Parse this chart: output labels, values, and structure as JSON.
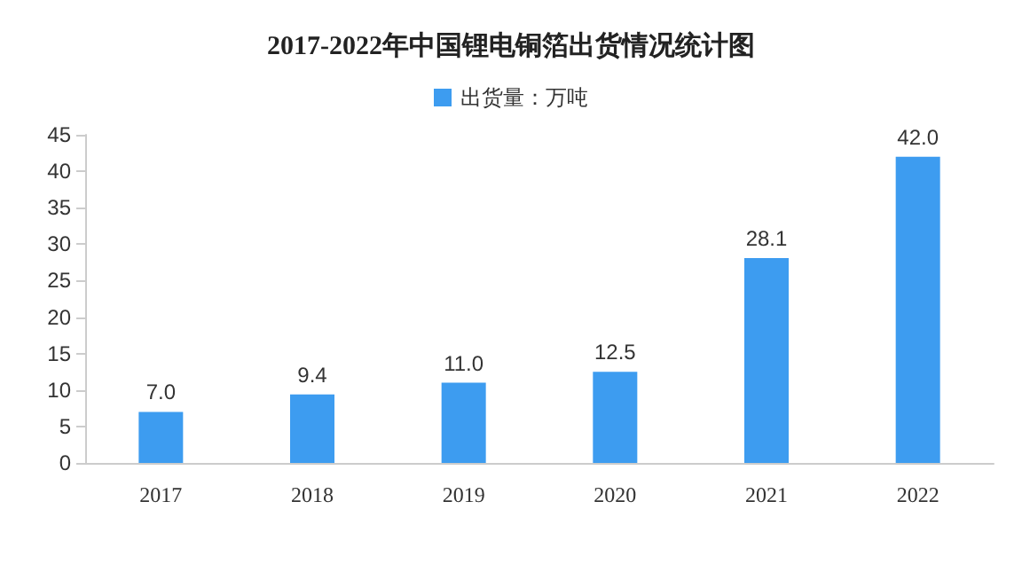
{
  "chart_data": {
    "type": "bar",
    "title": "2017-2022年中国锂电铜箔出货情况统计图",
    "categories": [
      "2017",
      "2018",
      "2019",
      "2020",
      "2021",
      "2022"
    ],
    "series": [
      {
        "name": "出货量：万吨",
        "color": "#3d9cf0",
        "values": [
          7.0,
          9.4,
          11.0,
          12.5,
          28.1,
          42.0
        ]
      }
    ],
    "value_labels": [
      "7.0",
      "9.4",
      "11.0",
      "12.5",
      "28.1",
      "42.0"
    ],
    "ylim": [
      0,
      45
    ],
    "yticks": [
      0,
      5,
      10,
      15,
      20,
      25,
      30,
      35,
      40,
      45
    ],
    "grid": false,
    "legend": "top"
  }
}
